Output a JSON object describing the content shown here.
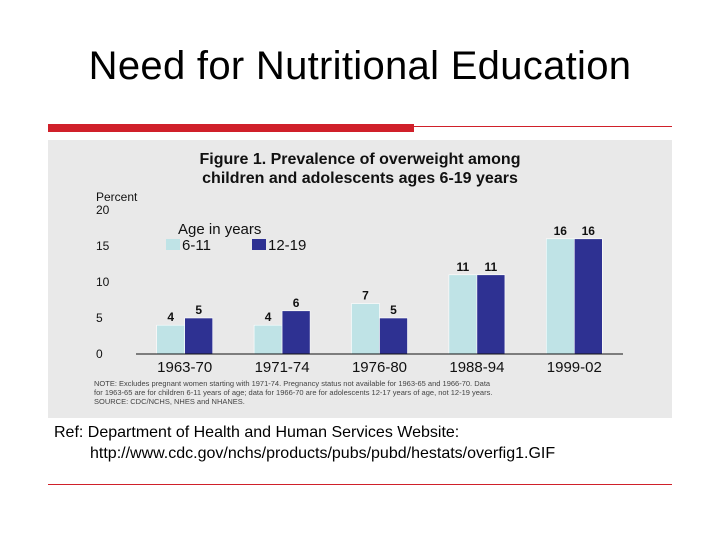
{
  "slide": {
    "title": "Need for Nutritional Education",
    "accent_color": "#d0202a"
  },
  "reference": {
    "line1": "Ref: Department of Health and Human Services Website:",
    "line2": "http://www.cdc.gov/nchs/products/pubs/pubd/hestats/overfig1.GIF"
  },
  "chart_data": {
    "type": "bar",
    "title_line1": "Figure 1. Prevalence of overweight among",
    "title_line2": "children and adolescents ages 6-19 years",
    "ylabel": "Percent",
    "xlabel": "",
    "ylim": [
      0,
      20
    ],
    "yticks": [
      0,
      5,
      10,
      15,
      20
    ],
    "categories": [
      "1963-70",
      "1971-74",
      "1976-80",
      "1988-94",
      "1999-02"
    ],
    "legend_title": "Age in years",
    "legend_position": "top-left",
    "series": [
      {
        "name": "6-11",
        "color": "#bfe3e6",
        "values": [
          4,
          4,
          7,
          11,
          16
        ]
      },
      {
        "name": "12-19",
        "color": "#2e3192",
        "values": [
          5,
          6,
          5,
          11,
          16
        ]
      }
    ],
    "note_line1": "NOTE: Excludes pregnant women starting with 1971-74. Pregnancy status not available for 1963-65 and 1966-70. Data",
    "note_line2": "for 1963-65 are for children 6-11 years of age; data for 1966-70 are for adolescents 12-17 years of age, not 12-19 years.",
    "note_line3": "SOURCE: CDC/NCHS, NHES and NHANES."
  }
}
